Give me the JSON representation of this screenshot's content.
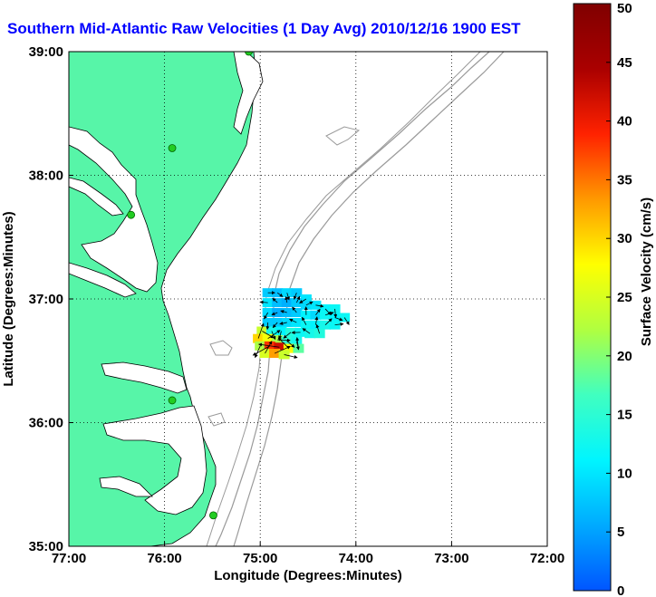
{
  "title": "Southern Mid-Atlantic Raw Velocities (1 Day Avg) 2010/12/16 1900 EST",
  "map": {
    "xlabel": "Longitude (Degrees:Minutes)",
    "ylabel": "Latitude (Degrees:Minutes)",
    "lon_range": [
      -77,
      -72
    ],
    "lat_range": [
      35,
      39
    ],
    "x_ticks": [
      {
        "value": -77,
        "label": "77:00"
      },
      {
        "value": -76,
        "label": "76:00"
      },
      {
        "value": -75,
        "label": "75:00"
      },
      {
        "value": -74,
        "label": "74:00"
      },
      {
        "value": -73,
        "label": "73:00"
      },
      {
        "value": -72,
        "label": "72:00"
      }
    ],
    "y_ticks": [
      {
        "value": 35,
        "label": "35:00"
      },
      {
        "value": 36,
        "label": "36:00"
      },
      {
        "value": 37,
        "label": "37:00"
      },
      {
        "value": 38,
        "label": "38:00"
      },
      {
        "value": 39,
        "label": "39:00"
      }
    ],
    "grid": "dotted",
    "land_color": "#57f5a8",
    "coast_color": "#000000",
    "bathymetry_color": "#9a9a9a",
    "station_color": "#22cc22",
    "stations": [
      {
        "lon": -75.12,
        "lat": 39.0
      },
      {
        "lon": -75.92,
        "lat": 38.22
      },
      {
        "lon": -76.35,
        "lat": 37.68
      },
      {
        "lon": -75.92,
        "lat": 36.18
      },
      {
        "lon": -75.49,
        "lat": 35.25
      }
    ]
  },
  "colorbar": {
    "label": "Surface Velocity (cm/s)",
    "min": 0,
    "max": 50,
    "ticks": [
      {
        "value": 0,
        "label": "0"
      },
      {
        "value": 5,
        "label": "5"
      },
      {
        "value": 10,
        "label": "10"
      },
      {
        "value": 15,
        "label": "15"
      },
      {
        "value": 20,
        "label": "20"
      },
      {
        "value": 25,
        "label": "25"
      },
      {
        "value": 30,
        "label": "30"
      },
      {
        "value": 35,
        "label": "35"
      },
      {
        "value": 40,
        "label": "40"
      },
      {
        "value": 45,
        "label": "45"
      },
      {
        "value": 50,
        "label": "50"
      }
    ],
    "stops": [
      "#0055ff",
      "#00aaff",
      "#00f5ff",
      "#40ffc0",
      "#b0ff40",
      "#ffff00",
      "#ff9900",
      "#ff2200",
      "#aa0000",
      "#800000"
    ]
  },
  "chart_data": {
    "type": "scatter",
    "title": "Southern Mid-Atlantic Raw Velocities (1 Day Avg) 2010/12/16 1900 EST",
    "xlabel": "Longitude (Degrees:Minutes)",
    "ylabel": "Latitude (Degrees:Minutes)",
    "xlim": [
      -77,
      -72
    ],
    "ylim": [
      35,
      39
    ],
    "value_label": "Surface Velocity (cm/s)",
    "points": [
      {
        "lon": -74.92,
        "lat": 37.05,
        "speed": 8
      },
      {
        "lon": -74.82,
        "lat": 37.05,
        "speed": 7
      },
      {
        "lon": -74.72,
        "lat": 37.05,
        "speed": 9
      },
      {
        "lon": -74.62,
        "lat": 37.05,
        "speed": 8
      },
      {
        "lon": -74.52,
        "lat": 37.0,
        "speed": 10
      },
      {
        "lon": -74.92,
        "lat": 36.97,
        "speed": 10
      },
      {
        "lon": -74.82,
        "lat": 36.97,
        "speed": 7
      },
      {
        "lon": -74.72,
        "lat": 36.97,
        "speed": 6
      },
      {
        "lon": -74.62,
        "lat": 36.97,
        "speed": 8
      },
      {
        "lon": -74.52,
        "lat": 36.95,
        "speed": 9
      },
      {
        "lon": -74.42,
        "lat": 36.95,
        "speed": 10
      },
      {
        "lon": -74.32,
        "lat": 36.92,
        "speed": 11
      },
      {
        "lon": -74.22,
        "lat": 36.92,
        "speed": 12
      },
      {
        "lon": -74.92,
        "lat": 36.89,
        "speed": 9
      },
      {
        "lon": -74.82,
        "lat": 36.89,
        "speed": 6
      },
      {
        "lon": -74.72,
        "lat": 36.89,
        "speed": 7
      },
      {
        "lon": -74.62,
        "lat": 36.89,
        "speed": 8
      },
      {
        "lon": -74.52,
        "lat": 36.87,
        "speed": 11
      },
      {
        "lon": -74.42,
        "lat": 36.87,
        "speed": 9
      },
      {
        "lon": -74.32,
        "lat": 36.87,
        "speed": 12
      },
      {
        "lon": -74.22,
        "lat": 36.85,
        "speed": 11
      },
      {
        "lon": -74.12,
        "lat": 36.85,
        "speed": 12
      },
      {
        "lon": -74.92,
        "lat": 36.81,
        "speed": 8
      },
      {
        "lon": -74.82,
        "lat": 36.81,
        "speed": 8
      },
      {
        "lon": -74.72,
        "lat": 36.81,
        "speed": 9
      },
      {
        "lon": -74.62,
        "lat": 36.81,
        "speed": 10
      },
      {
        "lon": -74.52,
        "lat": 36.79,
        "speed": 12
      },
      {
        "lon": -74.42,
        "lat": 36.79,
        "speed": 11
      },
      {
        "lon": -74.32,
        "lat": 36.79,
        "speed": 13
      },
      {
        "lon": -74.22,
        "lat": 36.79,
        "speed": 12
      },
      {
        "lon": -74.98,
        "lat": 36.74,
        "speed": 24
      },
      {
        "lon": -74.88,
        "lat": 36.74,
        "speed": 13
      },
      {
        "lon": -74.78,
        "lat": 36.74,
        "speed": 11
      },
      {
        "lon": -74.68,
        "lat": 36.73,
        "speed": 14
      },
      {
        "lon": -74.58,
        "lat": 36.73,
        "speed": 12
      },
      {
        "lon": -74.48,
        "lat": 36.72,
        "speed": 13
      },
      {
        "lon": -74.38,
        "lat": 36.72,
        "speed": 14
      },
      {
        "lon": -75.02,
        "lat": 36.68,
        "speed": 30
      },
      {
        "lon": -74.92,
        "lat": 36.68,
        "speed": 27
      },
      {
        "lon": -74.82,
        "lat": 36.67,
        "speed": 22
      },
      {
        "lon": -74.72,
        "lat": 36.66,
        "speed": 15
      },
      {
        "lon": -74.62,
        "lat": 36.66,
        "speed": 13
      },
      {
        "lon": -75.0,
        "lat": 36.62,
        "speed": 22
      },
      {
        "lon": -74.9,
        "lat": 36.62,
        "speed": 38
      },
      {
        "lon": -74.8,
        "lat": 36.61,
        "speed": 42
      },
      {
        "lon": -74.7,
        "lat": 36.6,
        "speed": 28
      },
      {
        "lon": -74.6,
        "lat": 36.6,
        "speed": 18
      },
      {
        "lon": -74.95,
        "lat": 36.56,
        "speed": 25
      },
      {
        "lon": -74.85,
        "lat": 36.56,
        "speed": 33
      },
      {
        "lon": -74.75,
        "lat": 36.55,
        "speed": 24
      }
    ]
  }
}
